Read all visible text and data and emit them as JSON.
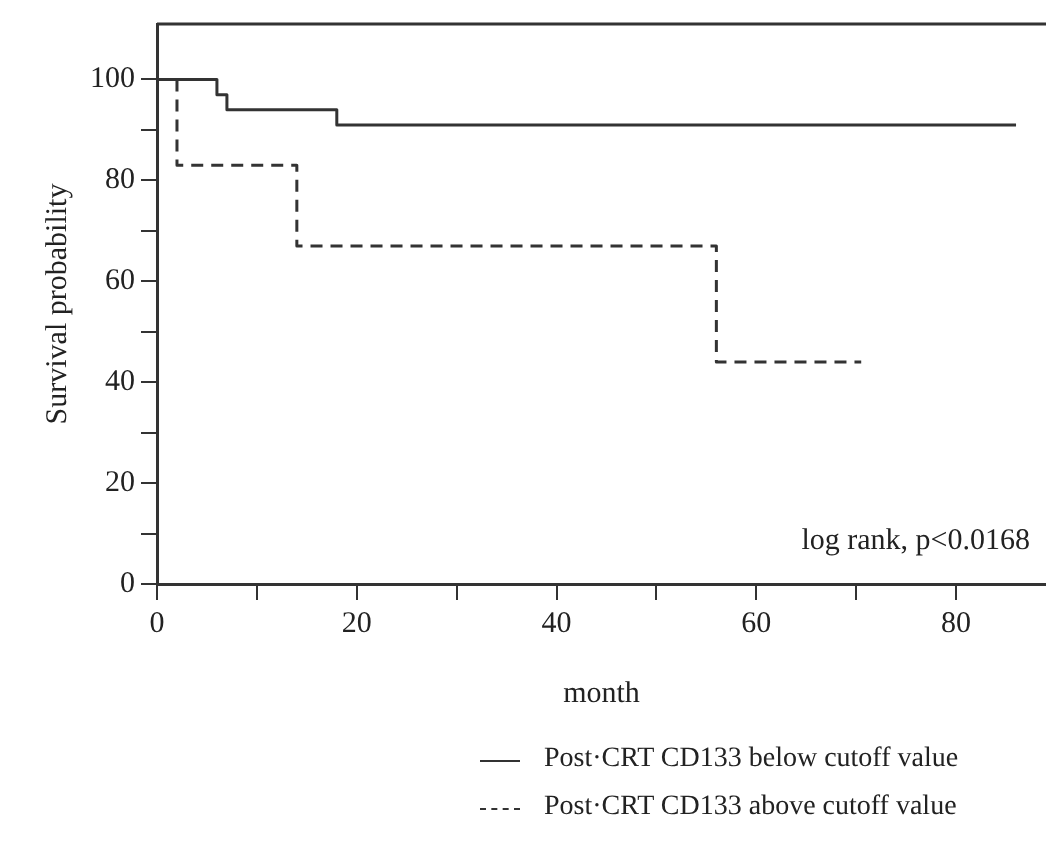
{
  "chart_data": {
    "type": "step",
    "xlabel": "month",
    "ylabel": "Survival probability",
    "xlim": [
      0,
      89
    ],
    "ylim": [
      0,
      111
    ],
    "xticks": [
      0,
      {
        "value": 10,
        "label": null
      },
      20,
      {
        "value": 30,
        "label": null
      },
      40,
      {
        "value": 50,
        "label": null
      },
      60,
      {
        "value": 70,
        "label": null
      },
      80
    ],
    "yticks": [
      0,
      {
        "value": 10,
        "label": null
      },
      20,
      {
        "value": 30,
        "label": null
      },
      40,
      {
        "value": 50,
        "label": null
      },
      60,
      {
        "value": 70,
        "label": null
      },
      80,
      {
        "value": 90,
        "label": null
      },
      100
    ],
    "series": [
      {
        "name": "Post·CRT CD133 below cutoff value",
        "color": "#333333",
        "line_style": "solid",
        "x": [
          0,
          6,
          7,
          18,
          86
        ],
        "values": [
          100,
          97,
          94,
          91,
          91
        ]
      },
      {
        "name": "Post·CRT CD133 above cutoff value",
        "color": "#333333",
        "line_style": "dashed",
        "x": [
          0,
          2,
          14,
          56,
          70.5
        ],
        "values": [
          100,
          83,
          67,
          44,
          44
        ]
      }
    ],
    "annotations": [
      "log rank, p<0.0168"
    ],
    "grid": false,
    "legend": "bottom",
    "marker": "none"
  }
}
